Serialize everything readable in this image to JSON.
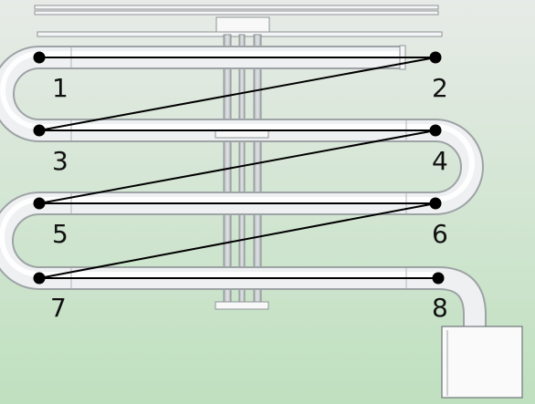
{
  "diagram": {
    "node_labels": [
      "1",
      "2",
      "3",
      "4",
      "5",
      "6",
      "7",
      "8"
    ],
    "colors": {
      "background_top": "#e7ebe7",
      "background_bottom": "#bfe0bf",
      "pipe_fill": "#f2f3f4",
      "pipe_edge": "#9ea3a6",
      "line": "#000000",
      "node": "#000000"
    }
  }
}
